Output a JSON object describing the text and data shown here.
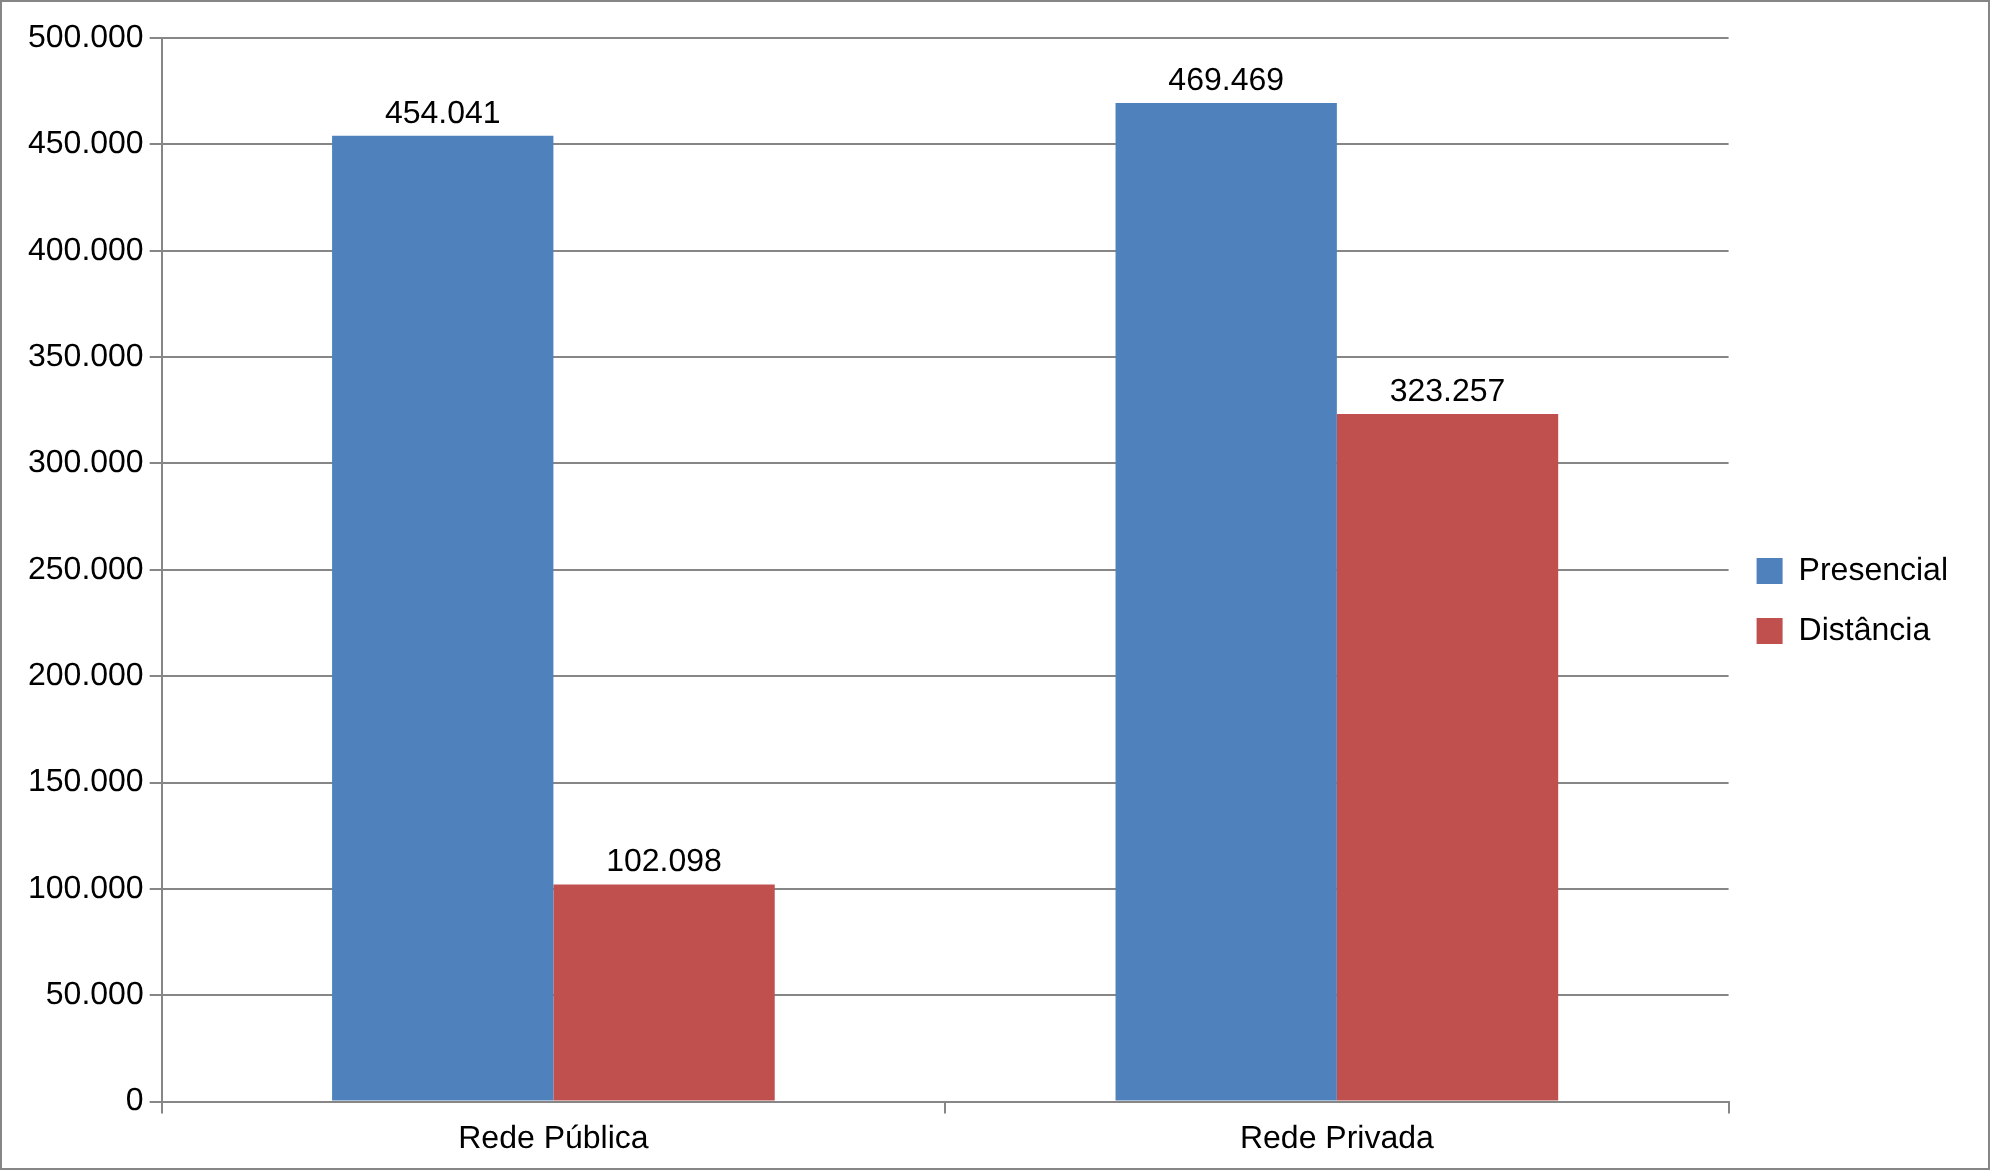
{
  "chart_data": {
    "type": "bar",
    "categories": [
      "Rede Pública",
      "Rede Privada"
    ],
    "series": [
      {
        "name": "Presencial",
        "color": "#4f81bd",
        "values": [
          454041,
          469469
        ],
        "value_labels": [
          "454.041",
          "469.469"
        ]
      },
      {
        "name": "Distância",
        "color": "#c0504d",
        "values": [
          102098,
          323257
        ],
        "value_labels": [
          "102.098",
          "323.257"
        ]
      }
    ],
    "ylim": [
      0,
      500000
    ],
    "yticks": [
      {
        "value": 0,
        "label": "0"
      },
      {
        "value": 50000,
        "label": "50.000"
      },
      {
        "value": 100000,
        "label": "100.000"
      },
      {
        "value": 150000,
        "label": "150.000"
      },
      {
        "value": 200000,
        "label": "200.000"
      },
      {
        "value": 250000,
        "label": "250.000"
      },
      {
        "value": 300000,
        "label": "300.000"
      },
      {
        "value": 350000,
        "label": "350.000"
      },
      {
        "value": 400000,
        "label": "400.000"
      },
      {
        "value": 450000,
        "label": "450.000"
      },
      {
        "value": 500000,
        "label": "500.000"
      }
    ],
    "grid": "y",
    "legend": "right"
  }
}
